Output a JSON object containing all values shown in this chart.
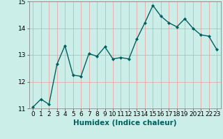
{
  "x": [
    0,
    1,
    2,
    3,
    4,
    5,
    6,
    7,
    8,
    9,
    10,
    11,
    12,
    13,
    14,
    15,
    16,
    17,
    18,
    19,
    20,
    21,
    22,
    23
  ],
  "y": [
    11.05,
    11.35,
    11.15,
    12.65,
    13.35,
    12.25,
    12.2,
    13.05,
    12.95,
    13.3,
    12.85,
    12.9,
    12.85,
    13.6,
    14.2,
    14.85,
    14.45,
    14.2,
    14.05,
    14.35,
    14.0,
    13.75,
    13.7,
    13.2
  ],
  "line_color": "#006060",
  "marker": "D",
  "marker_size": 2.0,
  "line_width": 1.0,
  "xlabel": "Humidex (Indice chaleur)",
  "xlim": [
    -0.5,
    23.5
  ],
  "ylim": [
    11,
    15
  ],
  "yticks": [
    11,
    12,
    13,
    14,
    15
  ],
  "xticks": [
    0,
    1,
    2,
    3,
    4,
    5,
    6,
    7,
    8,
    9,
    10,
    11,
    12,
    13,
    14,
    15,
    16,
    17,
    18,
    19,
    20,
    21,
    22,
    23
  ],
  "background_color": "#cceee8",
  "grid_color": "#ee9999",
  "grid_alpha": 1.0,
  "grid_linewidth": 0.5,
  "xlabel_fontsize": 7.5,
  "tick_fontsize": 6.5
}
